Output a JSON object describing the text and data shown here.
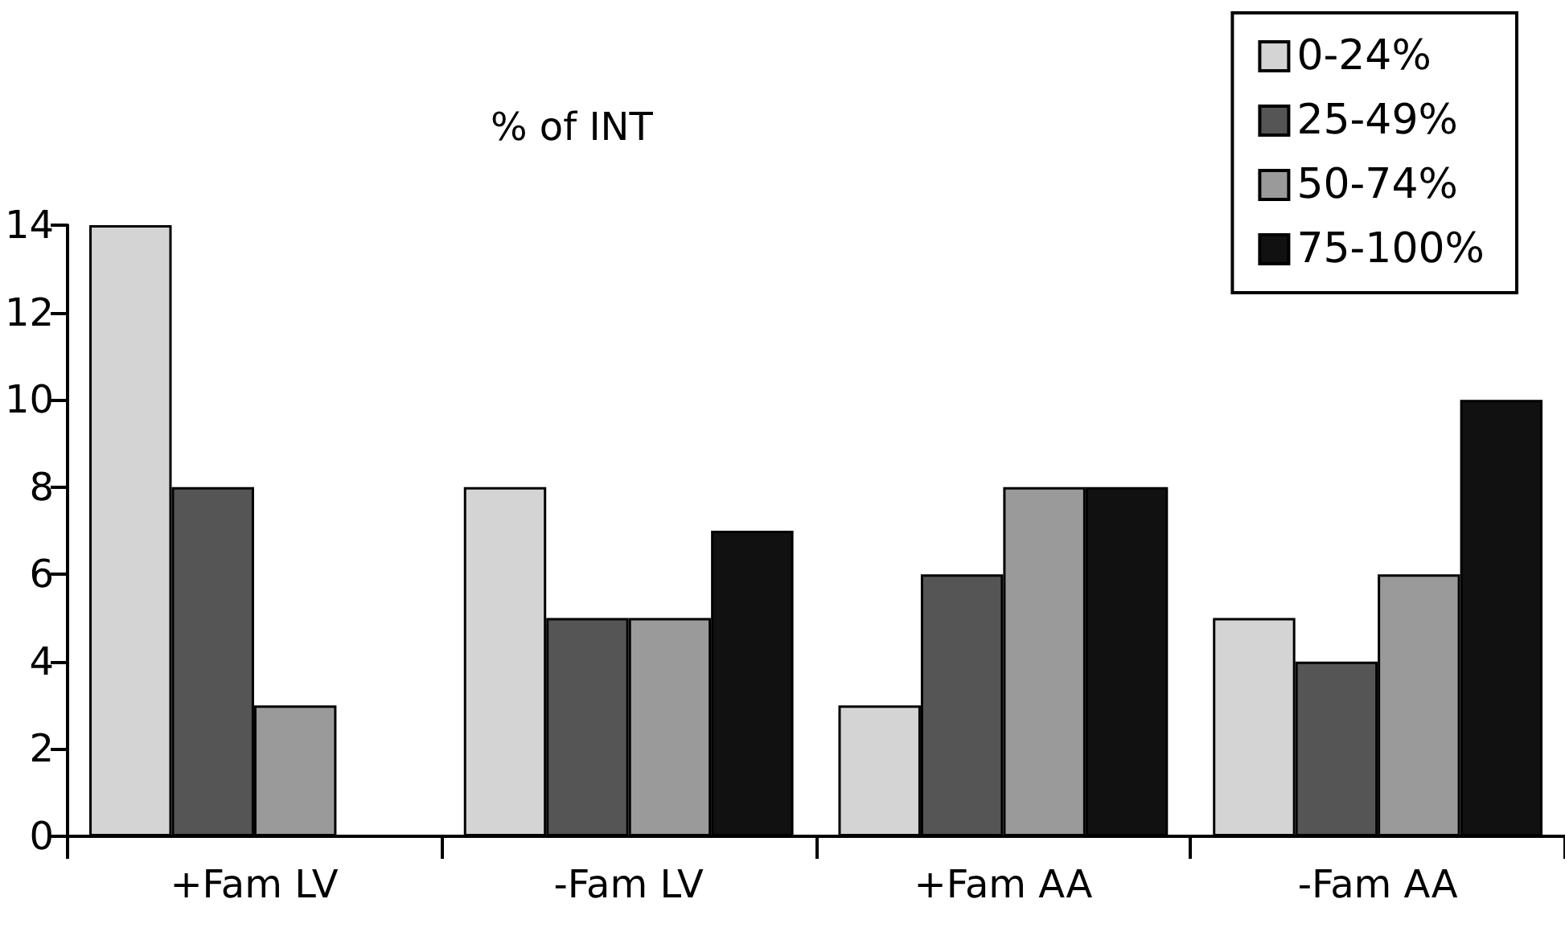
{
  "chart_data": {
    "type": "bar",
    "title": "% of INT",
    "categories": [
      "+Fam LV",
      "-Fam LV",
      "+Fam AA",
      "-Fam AA"
    ],
    "series": [
      {
        "name": "0-24%",
        "color": "#d4d4d4",
        "values": [
          14,
          8,
          3,
          5
        ]
      },
      {
        "name": "25-49%",
        "color": "#555555",
        "values": [
          8,
          5,
          6,
          4
        ]
      },
      {
        "name": "50-74%",
        "color": "#9a9a9a",
        "values": [
          3,
          5,
          8,
          6
        ]
      },
      {
        "name": "75-100%",
        "color": "#111111",
        "values": [
          null,
          7,
          8,
          10
        ]
      }
    ],
    "ylim": [
      0,
      14
    ],
    "yticks": [
      0,
      2,
      4,
      6,
      8,
      10,
      12,
      14
    ],
    "grid": false,
    "legend": "top right"
  }
}
